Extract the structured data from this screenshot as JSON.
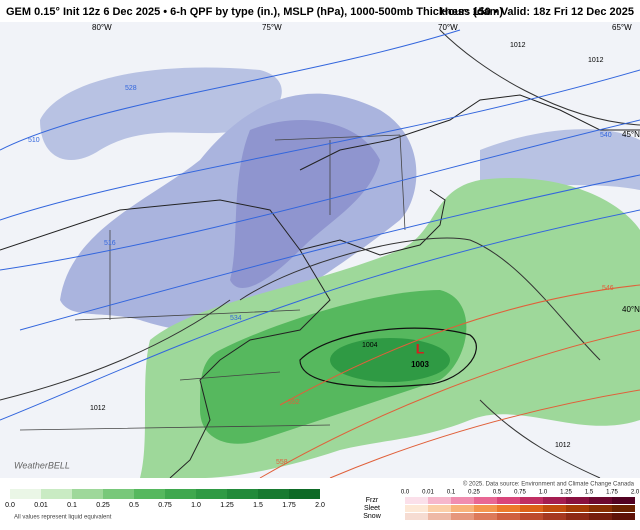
{
  "header": {
    "title": "GEM 0.15° Init 12z 6 Dec 2025 • 6-h QPF by type (in.), MSLP (hPa), 1000-500mb Thickness (dam)",
    "valid": "Hour: 150 • Valid: 18z Fri 12 Dec 2025"
  },
  "map": {
    "longitudes": [
      "80°W",
      "75°W",
      "70°W",
      "65°W"
    ],
    "latitudes": [
      "45°N",
      "40°N"
    ],
    "low": {
      "symbol": "L",
      "pressure": "1003"
    },
    "isobar_labels": [
      "1004",
      "1012",
      "1012",
      "1012",
      "1012"
    ],
    "thickness_labels": [
      "510",
      "516",
      "528",
      "534",
      "540",
      "546",
      "552",
      "558"
    ],
    "credit": "WeatherBELL"
  },
  "legend": {
    "rain_ticks": [
      "0.0",
      "0.01",
      "0.1",
      "0.25",
      "0.5",
      "0.75",
      "1.0",
      "1.25",
      "1.5",
      "1.75",
      "2.0"
    ],
    "note": "All values represent liquid equivalent",
    "types": [
      "Frzr",
      "Sleet",
      "Snow"
    ],
    "type_ticks": [
      "0.0",
      "0.01",
      "0.1",
      "0.25",
      "0.5",
      "0.75",
      "1.0",
      "1.25",
      "1.5",
      "1.75",
      "2.0"
    ],
    "source": "© 2025. Data source: Environment and Climate Change Canada"
  }
}
